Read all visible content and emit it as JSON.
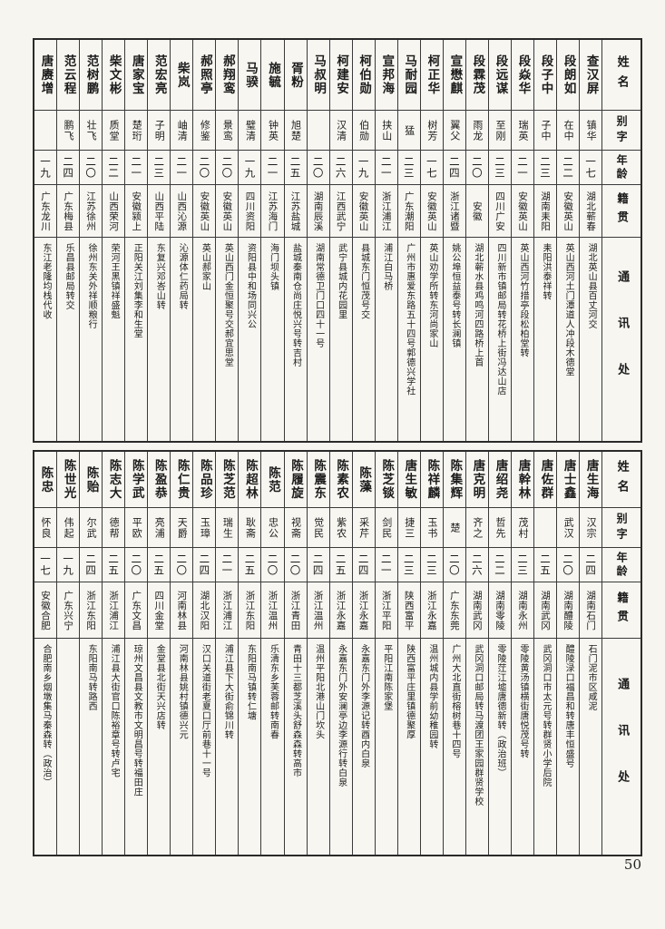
{
  "page_number": "50",
  "column_headers": {
    "name": "姓名",
    "courtesy": "别字",
    "age": "年龄",
    "origin": "籍贯",
    "address": "通讯处"
  },
  "tables": [
    {
      "id": "upper-roster",
      "entries": [
        {
          "name": "唐赓增",
          "courtesy": "",
          "age": "一九",
          "origin": "广东龙川",
          "address": "东江老隆均栈代收"
        },
        {
          "name": "范云程",
          "courtesy": "鹏飞",
          "age": "二四",
          "origin": "广东梅县",
          "address": "乐昌县邮局转交"
        },
        {
          "name": "范树鹏",
          "courtesy": "壮飞",
          "age": "二〇",
          "origin": "江苏徐州",
          "address": "徐州东关外祥顺粮行"
        },
        {
          "name": "柴文彬",
          "courtesy": "质堂",
          "age": "二二",
          "origin": "山西荣河",
          "address": "荣河王黑镇祥盛魁"
        },
        {
          "name": "唐家宝",
          "courtesy": "楚珩",
          "age": "二一",
          "origin": "安徽颍上",
          "address": "正阳关江刘集李和生堂"
        },
        {
          "name": "范宏亮",
          "courtesy": "子明",
          "age": "二三",
          "origin": "山西平陆",
          "address": "东复兴邓峇山转"
        },
        {
          "name": "柴岚",
          "courtesy": "岫清",
          "age": "二一",
          "origin": "山西沁源",
          "address": "沁源体仁药局转"
        },
        {
          "name": "郝照亭",
          "courtesy": "修鉴",
          "age": "二〇",
          "origin": "安徽英山",
          "address": "英山郝家山"
        },
        {
          "name": "郝翔鸾",
          "courtesy": "景鸾",
          "age": "二〇",
          "origin": "安徽英山",
          "address": "英山西门金恒聚号交郝宜思堂"
        },
        {
          "name": "马骙",
          "courtesy": "璧清",
          "age": "一九",
          "origin": "四川资阳",
          "address": "资阳县中和场同兴公"
        },
        {
          "name": "施毓",
          "courtesy": "钟英",
          "age": "二一",
          "origin": "江苏海门",
          "address": "海门坝头镇"
        },
        {
          "name": "胥粉",
          "courtesy": "旭楚",
          "age": "二五",
          "origin": "江苏盐城",
          "address": "盐城秦南仓尚庄悦兴号转吉村"
        },
        {
          "name": "马叔明",
          "courtesy": "",
          "age": "二〇",
          "origin": "湖南辰溪",
          "address": "湖南常德卫门口四十一号"
        },
        {
          "name": "柯建安",
          "courtesy": "汉清",
          "age": "二六",
          "origin": "江西武宁",
          "address": "武宁县城内花园里"
        },
        {
          "name": "柯伯勋",
          "courtesy": "伯勋",
          "age": "一九",
          "origin": "安徽英山",
          "address": "县城东门恒茂号交"
        },
        {
          "name": "宣邦海",
          "courtesy": "挟山",
          "age": "二一",
          "origin": "浙江浦江",
          "address": "浦江白马桥"
        },
        {
          "name": "马耐园",
          "courtesy": "猛",
          "age": "二三",
          "origin": "广东潮阳",
          "address": "广州市惠爱东路五十四号郭德兴学社"
        },
        {
          "name": "柯正华",
          "courtesy": "树芳",
          "age": "一七",
          "origin": "安徽英山",
          "address": "英山劝学所转东河尚家山"
        },
        {
          "name": "宣懋麒",
          "courtesy": "翼父",
          "age": "二四",
          "origin": "浙江诸暨",
          "address": "姚公埠恒益泰号转长澜镇"
        },
        {
          "name": "段霖茂",
          "courtesy": "雨龙",
          "age": "二〇",
          "origin": "安徽",
          "address": "湖北蕲水县鸡鸣河四路桥上首"
        },
        {
          "name": "段远谋",
          "courtesy": "至刚",
          "age": "二三",
          "origin": "四川广安",
          "address": "四川新市镇邮局转花桥上街冯达山店"
        },
        {
          "name": "段焱华",
          "courtesy": "瑞英",
          "age": "二一",
          "origin": "安徽英山",
          "address": "英山西河竹措亭段松柏堂转"
        },
        {
          "name": "段子中",
          "courtesy": "子中",
          "age": "二三",
          "origin": "湖南耒阳",
          "address": "耒阳洪泰祥转"
        },
        {
          "name": "段朗如",
          "courtesy": "在中",
          "age": "二二",
          "origin": "安徽英山",
          "address": "英山西河土门潭道人冲段木德堂"
        },
        {
          "name": "查汉屏",
          "courtesy": "镇华",
          "age": "一七",
          "origin": "湖北蕲春",
          "address": "湖北英山县百丈河交"
        }
      ]
    },
    {
      "id": "lower-roster",
      "entries": [
        {
          "name": "陈忠",
          "courtesy": "怀良",
          "age": "一七",
          "origin": "安徽合肥",
          "address": "合肥南乡烟墩集马秦森转（政治）"
        },
        {
          "name": "陈世光",
          "courtesy": "伟起",
          "age": "一九",
          "origin": "广东兴宁",
          "address": ""
        },
        {
          "name": "陈贻",
          "courtesy": "尔武",
          "age": "二四",
          "origin": "浙江东阳",
          "address": "东阳南马转路西"
        },
        {
          "name": "陈志大",
          "courtesy": "德帮",
          "age": "二五",
          "origin": "浙江浦江",
          "address": "浦江县大街官口陈裕章号转卢宅"
        },
        {
          "name": "陈学武",
          "courtesy": "平欧",
          "age": "二〇",
          "origin": "广东文昌",
          "address": "琼州文昌县文教市文明昌号转福田庄"
        },
        {
          "name": "陈盈恭",
          "courtesy": "亮浦",
          "age": "二五",
          "origin": "四川金堂",
          "address": "金堂县北街天兴店转"
        },
        {
          "name": "陈仁贵",
          "courtesy": "天爵",
          "age": "二〇",
          "origin": "河南林县",
          "address": "河南林县姚村镇德兴元"
        },
        {
          "name": "陈品珍",
          "courtesy": "玉璋",
          "age": "二四",
          "origin": "湖北汉阳",
          "address": "汉口关道街老夏口厅前巷十一号"
        },
        {
          "name": "陈芝范",
          "courtesy": "瑞生",
          "age": "二一",
          "origin": "浙江浦江",
          "address": "浦江县下大街俞锦川转"
        },
        {
          "name": "陈超林",
          "courtesy": "耿斋",
          "age": "二五",
          "origin": "浙江东阳",
          "address": "东阳南马镇转仁塘"
        },
        {
          "name": "陈范",
          "courtesy": "忠公",
          "age": "二〇",
          "origin": "浙江温州",
          "address": "乐清东乡芙蓉邮转南春"
        },
        {
          "name": "陈履旋",
          "courtesy": "视斋",
          "age": "二〇",
          "origin": "浙江青田",
          "address": "青田十三都芝溪头舒森森转高市"
        },
        {
          "name": "陈震东",
          "courtesy": "觉民",
          "age": "二四",
          "origin": "浙江温州",
          "address": "温州平阳北港山门坎头"
        },
        {
          "name": "陈素农",
          "courtesy": "紫农",
          "age": "二五",
          "origin": "浙江永嘉",
          "address": "永嘉东门外安澜亭边李源行转白泉"
        },
        {
          "name": "陈藻",
          "courtesy": "采芹",
          "age": "二四",
          "origin": "浙江永嘉",
          "address": "永嘉东门外李源记转酉内白泉"
        },
        {
          "name": "陈芝锬",
          "courtesy": "剑民",
          "age": "二一",
          "origin": "浙江平阳",
          "address": "平阳江南陈家堡"
        },
        {
          "name": "唐生敏",
          "courtesy": "捷三",
          "age": "二三",
          "origin": "陕西富平",
          "address": "陕西富平庄里镇德聚厚"
        },
        {
          "name": "陈祥麟",
          "courtesy": "玉书",
          "age": "二三",
          "origin": "浙江永嘉",
          "address": "温州城内县学前幼稚园转"
        },
        {
          "name": "陈集辉",
          "courtesy": "楚",
          "age": "二〇",
          "origin": "广东东莞",
          "address": "广州大北直街榕树巷十四号"
        },
        {
          "name": "唐克明",
          "courtesy": "齐之",
          "age": "二六",
          "origin": "湖南武冈",
          "address": "武冈洞口邮局转马渡团王家园群贤学校"
        },
        {
          "name": "唐绍尧",
          "courtesy": "哲先",
          "age": "二二",
          "origin": "湖南零陵",
          "address": "零陵茳江墟唐德新转（政治班）"
        },
        {
          "name": "唐幹林",
          "courtesy": "茂村",
          "age": "二三",
          "origin": "湖南永州",
          "address": "零陵黄汤镇横街唐悦茂号转"
        },
        {
          "name": "唐佐群",
          "courtesy": "",
          "age": "二五",
          "origin": "湖南武冈",
          "address": "武冈洞口市太元号转群贤小学后院"
        },
        {
          "name": "唐士鑫",
          "courtesy": "武汉",
          "age": "二〇",
          "origin": "湖南醴陵",
          "address": "醴陵渌口福昌和转唐丰恒盛号"
        },
        {
          "name": "唐生海",
          "courtesy": "汉宗",
          "age": "二四",
          "origin": "湖南石门",
          "address": "石门泥市区咸泥"
        }
      ]
    }
  ]
}
